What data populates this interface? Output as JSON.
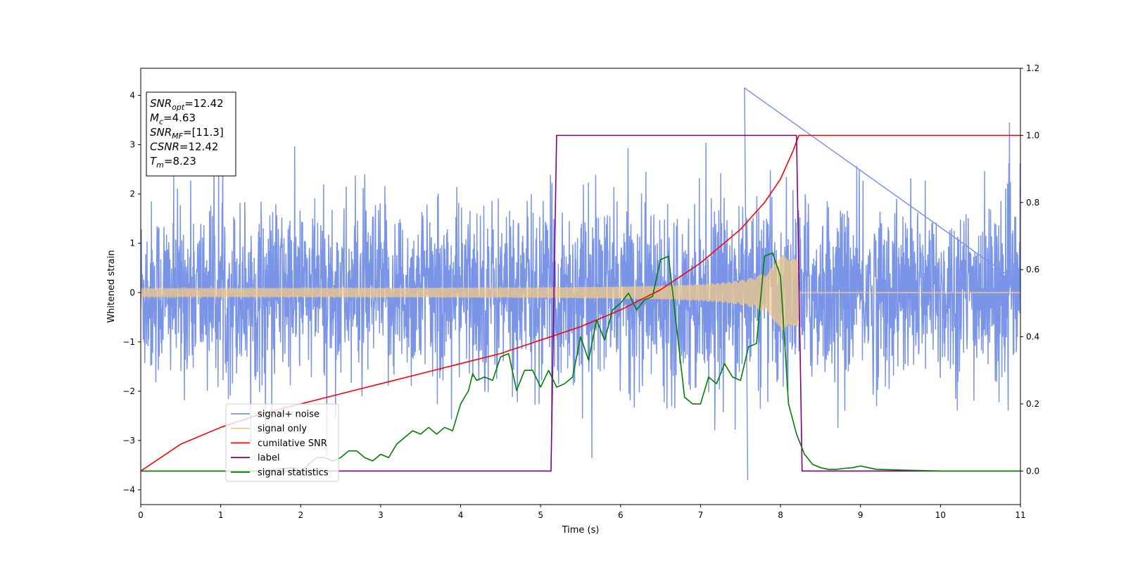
{
  "chart_data": {
    "type": "line",
    "xlabel": "Time (s)",
    "ylabel": "Whitened strain",
    "xlim": [
      0,
      11
    ],
    "ylim": [
      -4.3,
      4.55
    ],
    "y2lim": [
      -0.1,
      1.2
    ],
    "x_ticks": [
      "0",
      "1",
      "2",
      "3",
      "4",
      "5",
      "6",
      "7",
      "8",
      "9",
      "10",
      "11"
    ],
    "y_ticks": [
      "−4",
      "−3",
      "−2",
      "−1",
      "0",
      "1",
      "2",
      "3",
      "4"
    ],
    "y2_ticks": [
      "0.0",
      "0.2",
      "0.4",
      "0.6",
      "0.8",
      "1.0",
      "1.2"
    ],
    "annotation": {
      "lines": [
        {
          "var": "SNR",
          "sub": "opt",
          "value": "=12.42"
        },
        {
          "var": "M",
          "sub": "c",
          "value": "=4.63"
        },
        {
          "var": "SNR",
          "sub": "MF",
          "value": "=[11.3]"
        },
        {
          "var": "CSNR",
          "sub": "",
          "value": "=12.42"
        },
        {
          "var": "T",
          "sub": "m",
          "value": "=8.23"
        }
      ]
    },
    "legend": {
      "position": "lower-left",
      "entries": [
        {
          "label": "signal+ noise",
          "color": "#7a94e8"
        },
        {
          "label": "signal only",
          "color": "#f3c98a"
        },
        {
          "label": "cumilative SNR",
          "color": "#ff0000"
        },
        {
          "label": "label",
          "color": "#800080"
        },
        {
          "label": "signal statistics",
          "color": "#008000"
        }
      ]
    },
    "series": [
      {
        "name": "signal+ noise",
        "axis": "left",
        "color": "#7a94e8",
        "description_stats": {
          "band_std": 0.9,
          "peak_max": 4.15,
          "peak_max_t": 7.55,
          "peak_min": -3.8,
          "peak_min_t": 7.55
        }
      },
      {
        "name": "signal only",
        "axis": "left",
        "color": "#f3c98a",
        "chirp": {
          "t_start": 0,
          "t_merge": 8.23,
          "amp_start": 0.08,
          "amp_merge": 0.9
        }
      },
      {
        "name": "cumilative SNR",
        "axis": "right",
        "color": "#ff0000",
        "x": [
          0,
          0.5,
          1,
          1.5,
          2,
          2.5,
          3,
          3.5,
          4,
          4.5,
          5,
          5.5,
          6,
          6.5,
          7,
          7.5,
          7.8,
          8.0,
          8.15,
          8.23,
          11
        ],
        "y": [
          0.0,
          0.08,
          0.13,
          0.17,
          0.2,
          0.23,
          0.26,
          0.29,
          0.32,
          0.35,
          0.39,
          0.43,
          0.48,
          0.54,
          0.62,
          0.72,
          0.8,
          0.87,
          0.95,
          1.0,
          1.0
        ]
      },
      {
        "name": "label",
        "axis": "right",
        "color": "#800080",
        "x": [
          0,
          5.13,
          5.2,
          8.2,
          8.27,
          11
        ],
        "y": [
          0,
          0,
          1,
          1,
          0,
          0
        ]
      },
      {
        "name": "signal statistics",
        "axis": "right",
        "color": "#008000",
        "x": [
          0,
          0.5,
          1,
          1.5,
          1.9,
          2.0,
          2.1,
          2.2,
          2.3,
          2.4,
          2.5,
          2.6,
          2.7,
          2.8,
          2.9,
          3.0,
          3.1,
          3.2,
          3.3,
          3.4,
          3.5,
          3.6,
          3.7,
          3.8,
          3.9,
          4.0,
          4.05,
          4.1,
          4.15,
          4.2,
          4.3,
          4.4,
          4.5,
          4.6,
          4.7,
          4.8,
          4.9,
          5.0,
          5.1,
          5.2,
          5.3,
          5.4,
          5.5,
          5.6,
          5.7,
          5.8,
          5.9,
          6.0,
          6.1,
          6.2,
          6.3,
          6.4,
          6.5,
          6.6,
          6.7,
          6.8,
          6.9,
          7.0,
          7.1,
          7.2,
          7.3,
          7.4,
          7.5,
          7.6,
          7.7,
          7.8,
          7.9,
          8.0,
          8.1,
          8.2,
          8.3,
          8.4,
          8.5,
          8.6,
          8.7,
          8.8,
          8.9,
          9.0,
          9.1,
          9.2,
          9.5,
          10,
          10.5,
          11
        ],
        "y": [
          0.0,
          0.0,
          0.0,
          0.0,
          0.01,
          0.0,
          0.02,
          0.04,
          0.04,
          0.03,
          0.04,
          0.06,
          0.06,
          0.04,
          0.03,
          0.05,
          0.04,
          0.08,
          0.1,
          0.12,
          0.11,
          0.13,
          0.11,
          0.13,
          0.12,
          0.2,
          0.22,
          0.24,
          0.29,
          0.27,
          0.28,
          0.27,
          0.34,
          0.35,
          0.24,
          0.3,
          0.3,
          0.25,
          0.3,
          0.25,
          0.26,
          0.28,
          0.4,
          0.33,
          0.45,
          0.39,
          0.48,
          0.5,
          0.53,
          0.48,
          0.51,
          0.52,
          0.63,
          0.64,
          0.43,
          0.22,
          0.2,
          0.2,
          0.28,
          0.26,
          0.32,
          0.28,
          0.27,
          0.37,
          0.38,
          0.64,
          0.65,
          0.58,
          0.2,
          0.11,
          0.05,
          0.02,
          0.01,
          0.005,
          0.005,
          0.008,
          0.01,
          0.015,
          0.01,
          0.005,
          0.003,
          0.0,
          0.0,
          0.0
        ]
      }
    ]
  }
}
